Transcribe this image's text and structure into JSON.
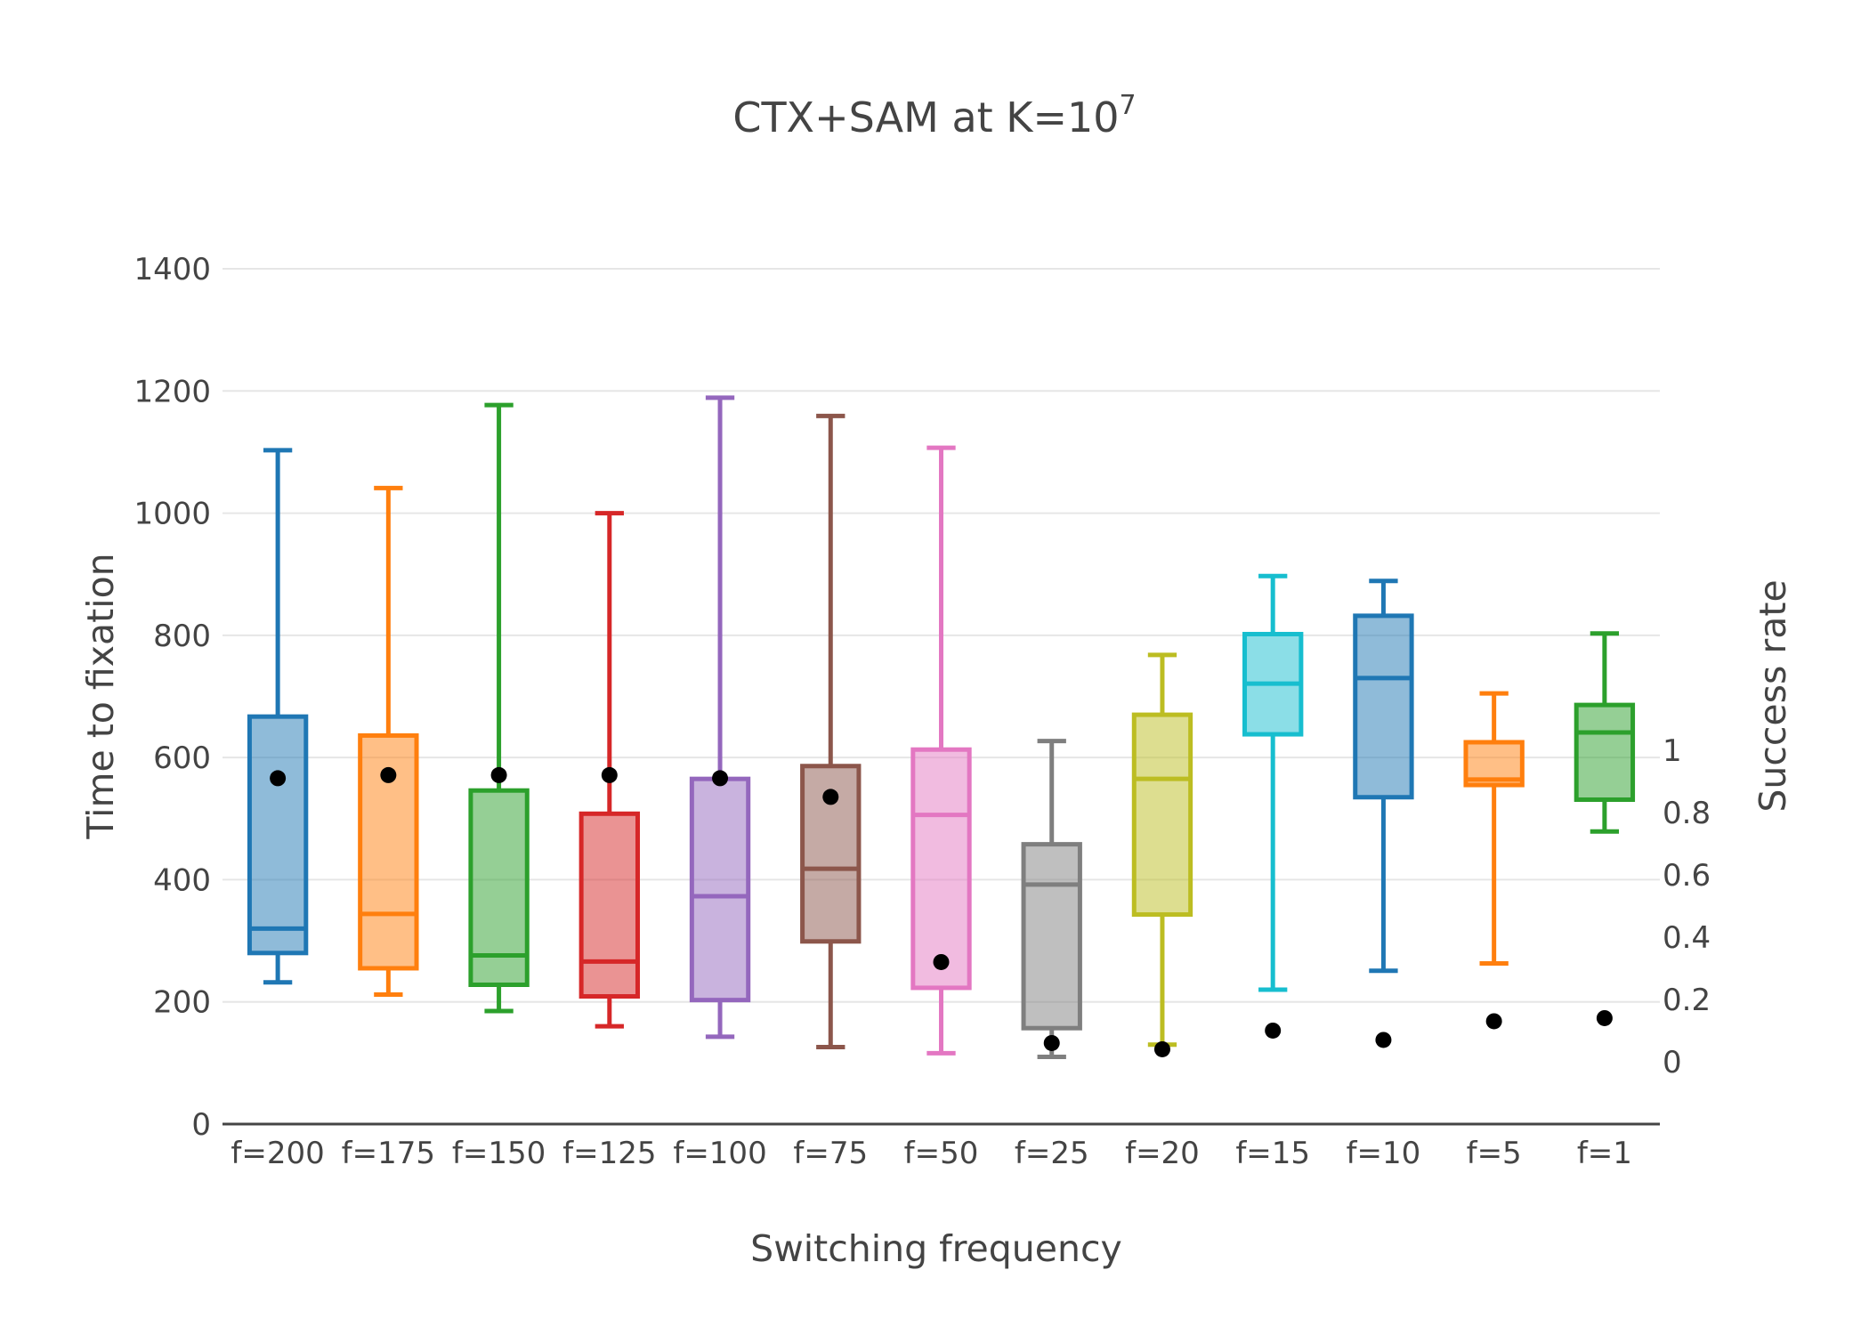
{
  "chart_data": {
    "type": "box",
    "title_main": "CTX+SAM at K=10",
    "title_superscript": "7",
    "xlabel": "Switching frequency",
    "ylabel": "Time to fixation",
    "y2label": "Success rate",
    "ylim": [
      0,
      1400
    ],
    "y2lim": [
      -0.2,
      2.545
    ],
    "yticks": [
      0,
      200,
      400,
      600,
      800,
      1000,
      1200,
      1400
    ],
    "y2ticks": [
      {
        "value": 0,
        "label": "0"
      },
      {
        "value": 0.2,
        "label": "0.2"
      },
      {
        "value": 0.4,
        "label": "0.4"
      },
      {
        "value": 0.6,
        "label": "0.6"
      },
      {
        "value": 0.8,
        "label": "0.8"
      },
      {
        "value": 1,
        "label": "1"
      }
    ],
    "categories": [
      "f=200",
      "f=175",
      "f=150",
      "f=125",
      "f=100",
      "f=75",
      "f=50",
      "f=25",
      "f=20",
      "f=15",
      "f=10",
      "f=5",
      "f=1"
    ],
    "boxes": [
      {
        "category": "f=200",
        "min": 232,
        "q1": 280,
        "median": 320,
        "q3": 667,
        "max": 1103,
        "color": "#1f77b4"
      },
      {
        "category": "f=175",
        "min": 212,
        "q1": 255,
        "median": 344,
        "q3": 636,
        "max": 1041,
        "color": "#ff7f0e"
      },
      {
        "category": "f=150",
        "min": 185,
        "q1": 228,
        "median": 276,
        "q3": 546,
        "max": 1177,
        "color": "#2ca02c"
      },
      {
        "category": "f=125",
        "min": 160,
        "q1": 209,
        "median": 266,
        "q3": 508,
        "max": 1000,
        "color": "#d62728"
      },
      {
        "category": "f=100",
        "min": 143,
        "q1": 203,
        "median": 373,
        "q3": 565,
        "max": 1189,
        "color": "#9467bd"
      },
      {
        "category": "f=75",
        "min": 126,
        "q1": 299,
        "median": 418,
        "q3": 586,
        "max": 1159,
        "color": "#8c564b"
      },
      {
        "category": "f=50",
        "min": 116,
        "q1": 223,
        "median": 506,
        "q3": 613,
        "max": 1107,
        "color": "#e377c2"
      },
      {
        "category": "f=25",
        "min": 110,
        "q1": 157,
        "median": 392,
        "q3": 458,
        "max": 627,
        "color": "#7f7f7f"
      },
      {
        "category": "f=20",
        "min": 130,
        "q1": 343,
        "median": 565,
        "q3": 670,
        "max": 768,
        "color": "#bcbd22"
      },
      {
        "category": "f=15",
        "min": 220,
        "q1": 638,
        "median": 721,
        "q3": 802,
        "max": 897,
        "color": "#17becf"
      },
      {
        "category": "f=10",
        "min": 251,
        "q1": 535,
        "median": 730,
        "q3": 832,
        "max": 889,
        "color": "#1f77b4"
      },
      {
        "category": "f=5",
        "min": 263,
        "q1": 555,
        "median": 564,
        "q3": 625,
        "max": 705,
        "color": "#ff7f0e"
      },
      {
        "category": "f=1",
        "min": 479,
        "q1": 531,
        "median": 641,
        "q3": 686,
        "max": 803,
        "color": "#2ca02c"
      }
    ],
    "success_rate": [
      0.91,
      0.92,
      0.92,
      0.92,
      0.91,
      0.85,
      0.32,
      0.06,
      0.04,
      0.1,
      0.07,
      0.13,
      0.14
    ],
    "success_marker_color": "#000000",
    "grid": true,
    "legend": "none"
  }
}
